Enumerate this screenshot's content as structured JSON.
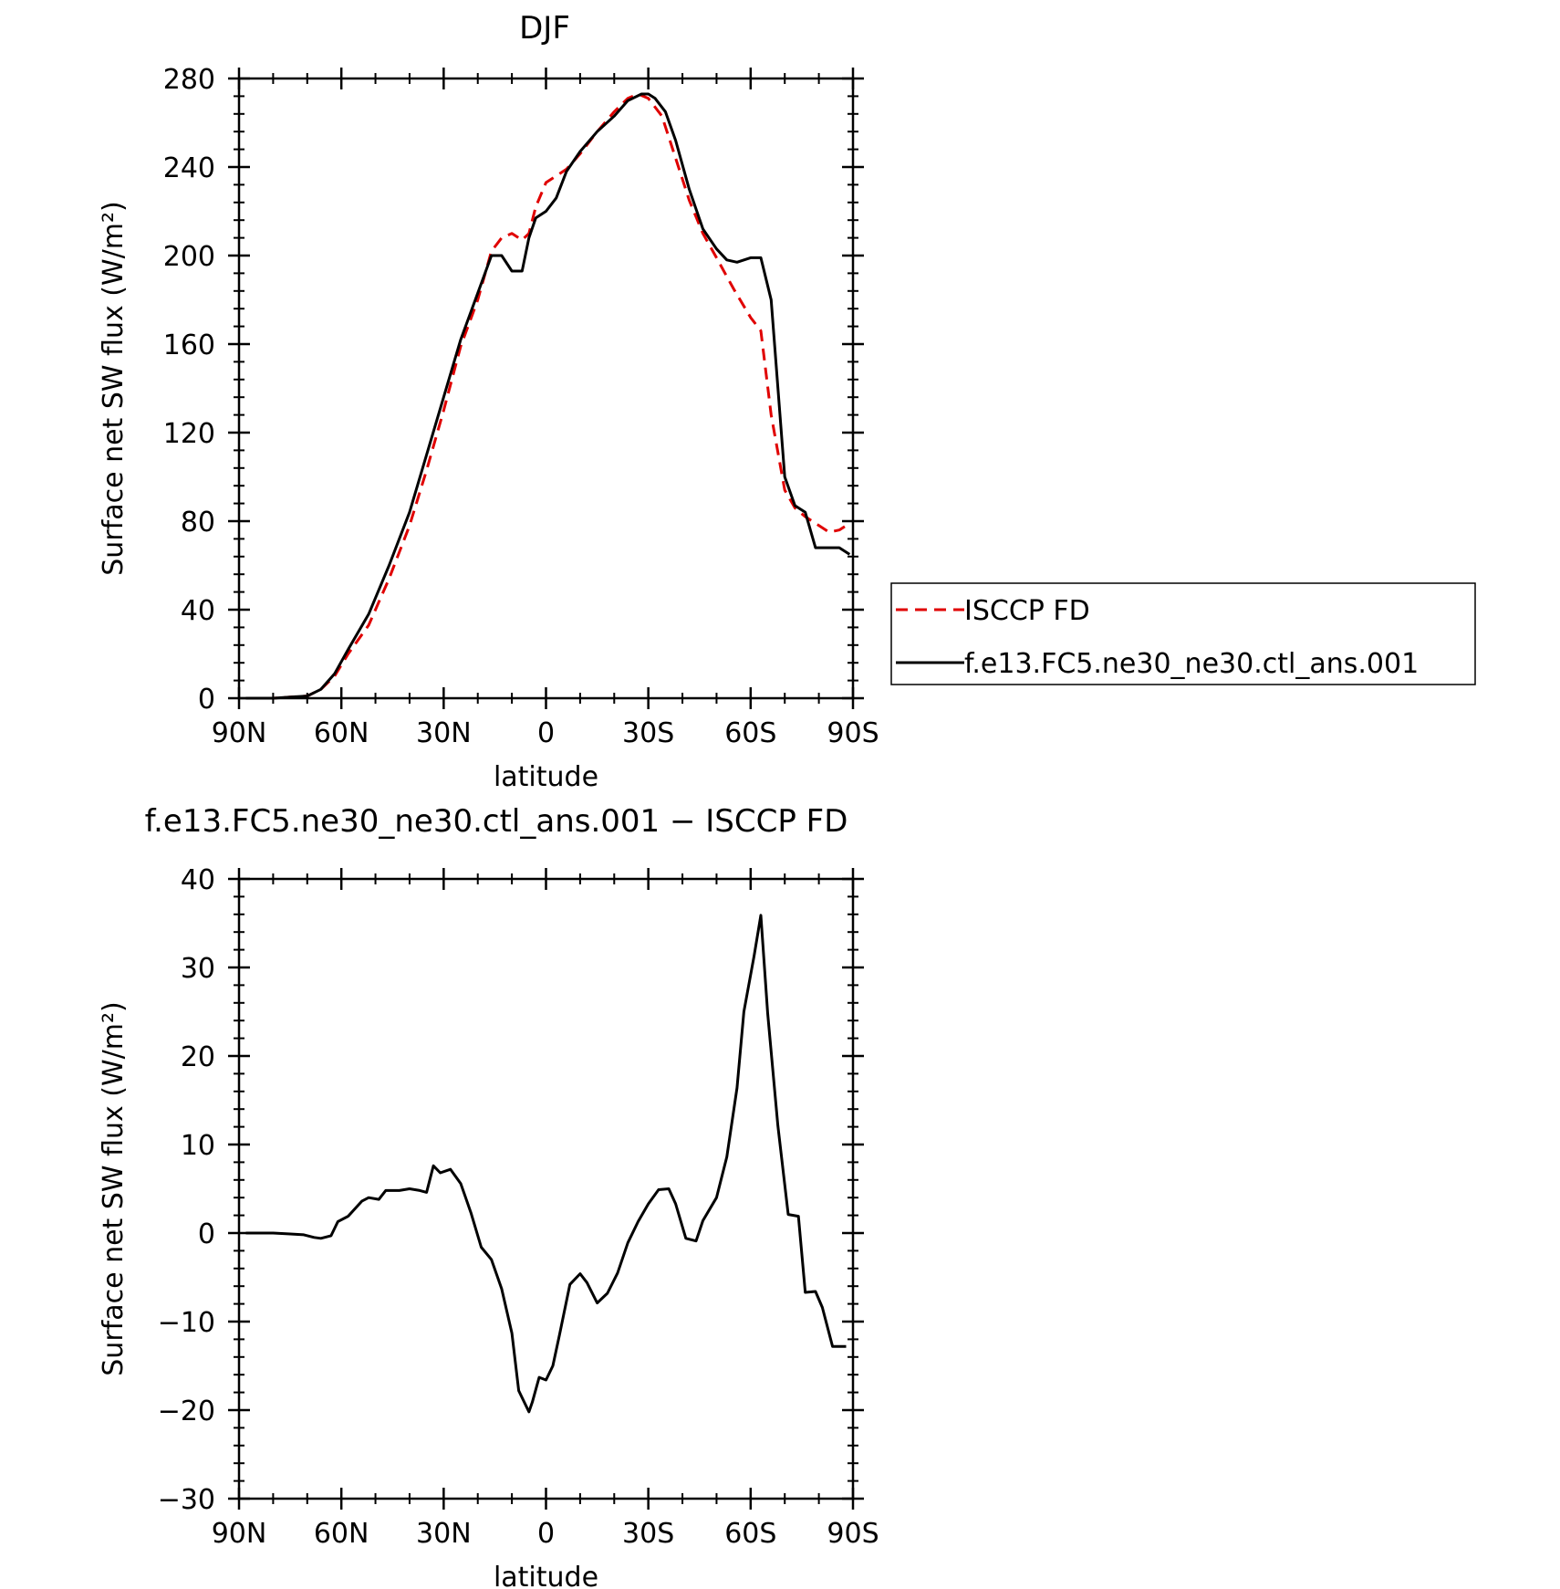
{
  "chart_data": [
    {
      "type": "line",
      "title": "DJF",
      "xlabel": "latitude",
      "ylabel": "Surface net SW flux (W/m²)",
      "xlim": [
        90,
        -90
      ],
      "ylim": [
        0,
        280
      ],
      "x_ticks": [
        {
          "value": 90,
          "label": "90N"
        },
        {
          "value": 60,
          "label": "60N"
        },
        {
          "value": 30,
          "label": "30N"
        },
        {
          "value": 0,
          "label": "0"
        },
        {
          "value": -30,
          "label": "30S"
        },
        {
          "value": -60,
          "label": "60S"
        },
        {
          "value": -90,
          "label": "90S"
        }
      ],
      "y_ticks": [
        {
          "value": 0,
          "label": "0"
        },
        {
          "value": 40,
          "label": "40"
        },
        {
          "value": 80,
          "label": "80"
        },
        {
          "value": 120,
          "label": "120"
        },
        {
          "value": 160,
          "label": "160"
        },
        {
          "value": 200,
          "label": "200"
        },
        {
          "value": 240,
          "label": "240"
        },
        {
          "value": 280,
          "label": "280"
        }
      ],
      "legend": "right",
      "series": [
        {
          "name": "ISCCP FD",
          "color": "#e00000",
          "dash": true,
          "x": [
            88,
            80,
            75,
            70,
            66,
            62,
            58,
            52,
            46,
            40,
            35,
            30,
            25,
            20,
            16,
            13,
            10,
            7,
            5,
            3,
            0,
            -3,
            -6,
            -10,
            -15,
            -20,
            -24,
            -27,
            -30,
            -34,
            -38,
            -42,
            -46,
            -50,
            -55,
            -60,
            -63,
            -66,
            -70,
            -73,
            -76,
            -79,
            -83,
            -86,
            -89
          ],
          "y": [
            0,
            0,
            0.5,
            1,
            4,
            10,
            20,
            33,
            54,
            78,
            103,
            130,
            159,
            180,
            202,
            208,
            210,
            207,
            210,
            222,
            233,
            236,
            239,
            246,
            256,
            265,
            271,
            273,
            271,
            263,
            244,
            225,
            210,
            199,
            185,
            172,
            166,
            128,
            94,
            86,
            82,
            79,
            75,
            76,
            79
          ]
        },
        {
          "name": "f.e13.FC5.ne30_ne30.ctl_ans.001",
          "color": "#000000",
          "dash": false,
          "x": [
            88,
            80,
            75,
            70,
            66,
            62,
            58,
            52,
            46,
            40,
            35,
            30,
            25,
            20,
            16,
            13,
            10,
            7,
            5,
            3,
            0,
            -3,
            -6,
            -10,
            -15,
            -20,
            -24,
            -28,
            -30,
            -32,
            -35,
            -38,
            -42,
            -46,
            -50,
            -53,
            -56,
            -60,
            -63,
            -66,
            -70,
            -73,
            -76,
            -79,
            -83,
            -86,
            -89
          ],
          "y": [
            0,
            0,
            0.5,
            1,
            4,
            11,
            22,
            38,
            60,
            84,
            110,
            136,
            162,
            183,
            200,
            200,
            193,
            193,
            208,
            217,
            220,
            226,
            238,
            247,
            256,
            263,
            270,
            273,
            273,
            271,
            265,
            252,
            230,
            212,
            203,
            198,
            197,
            199,
            199,
            180,
            100,
            87,
            84,
            68,
            68,
            68,
            65
          ]
        }
      ]
    },
    {
      "type": "line",
      "title": "f.e13.FC5.ne30_ne30.ctl_ans.001 − ISCCP FD",
      "xlabel": "latitude",
      "ylabel": "Surface net SW flux (W/m²)",
      "xlim": [
        90,
        -90
      ],
      "ylim": [
        -30,
        40
      ],
      "x_ticks": [
        {
          "value": 90,
          "label": "90N"
        },
        {
          "value": 60,
          "label": "60N"
        },
        {
          "value": 30,
          "label": "30N"
        },
        {
          "value": 0,
          "label": "0"
        },
        {
          "value": -30,
          "label": "30S"
        },
        {
          "value": -60,
          "label": "60S"
        },
        {
          "value": -90,
          "label": "90S"
        }
      ],
      "y_ticks": [
        {
          "value": -30,
          "label": "−30"
        },
        {
          "value": -20,
          "label": "−20"
        },
        {
          "value": -10,
          "label": "−10"
        },
        {
          "value": 0,
          "label": "0"
        },
        {
          "value": 10,
          "label": "10"
        },
        {
          "value": 20,
          "label": "20"
        },
        {
          "value": 30,
          "label": "30"
        },
        {
          "value": 40,
          "label": "40"
        }
      ],
      "series": [
        {
          "color": "#000000",
          "dash": false,
          "x": [
            88,
            80,
            75,
            71,
            68,
            66,
            63,
            61,
            58,
            54,
            52,
            49,
            47,
            43,
            40,
            37,
            35,
            33,
            31,
            28,
            25,
            22,
            19,
            16,
            13,
            10,
            8,
            5,
            4,
            2,
            0,
            -2,
            -4,
            -7,
            -10,
            -12,
            -15,
            -18,
            -21,
            -24,
            -27,
            -30,
            -33,
            -36,
            -38,
            -41,
            -44,
            -46,
            -50,
            -53,
            -56,
            -58,
            -61,
            -63,
            -65,
            -68,
            -71,
            -74,
            -76,
            -79,
            -81,
            -84,
            -88
          ],
          "y": [
            0,
            0,
            -0.1,
            -0.2,
            -0.5,
            -0.6,
            -0.3,
            1.3,
            1.9,
            3.6,
            4.0,
            3.8,
            4.8,
            4.8,
            5.0,
            4.8,
            4.6,
            7.6,
            6.8,
            7.2,
            5.6,
            2.3,
            -1.6,
            -3.0,
            -6.3,
            -11.3,
            -17.8,
            -20.2,
            -19.1,
            -16.3,
            -16.6,
            -15.0,
            -11.4,
            -5.8,
            -4.6,
            -5.6,
            -7.9,
            -6.8,
            -4.5,
            -1.1,
            1.3,
            3.3,
            4.9,
            5.0,
            3.3,
            -0.6,
            -0.9,
            1.4,
            4.0,
            8.6,
            16.4,
            25.0,
            31.3,
            35.9,
            24.8,
            12.1,
            2.1,
            1.9,
            -6.7,
            -6.6,
            -8.4,
            -12.8,
            -12.8
          ]
        }
      ]
    }
  ]
}
